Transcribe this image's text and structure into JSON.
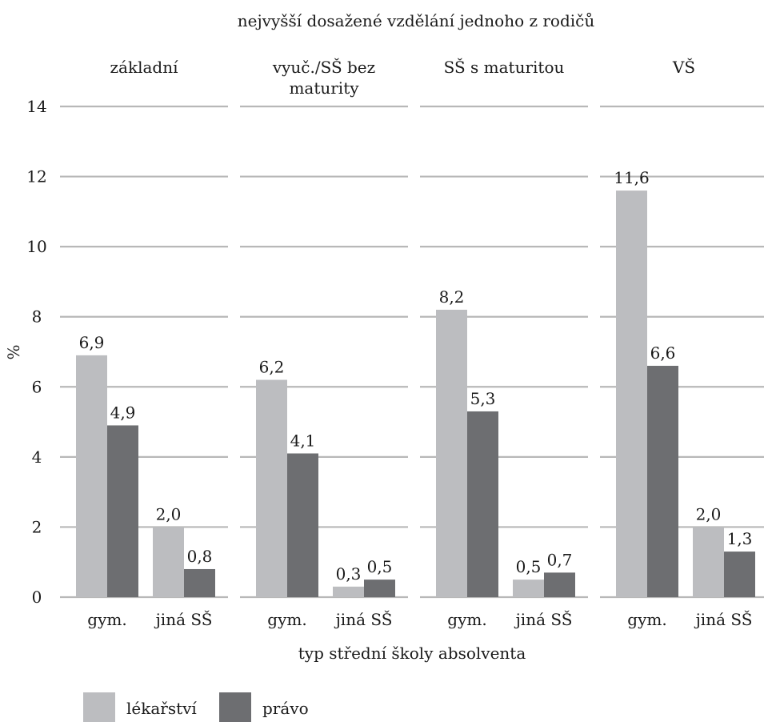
{
  "chart_data": {
    "type": "bar",
    "title": "nejvyšší dosažené vzdělání jednoho z rodičů",
    "xlabel": "typ střední školy absolventa",
    "ylabel": "%",
    "ylim": [
      0,
      14
    ],
    "yticks": [
      "0",
      "2",
      "4",
      "6",
      "8",
      "10",
      "12",
      "14"
    ],
    "grid": true,
    "legend_position": "bottom-left",
    "categories": [
      "gym.",
      "jiná SŠ"
    ],
    "panels": [
      {
        "title_lines": [
          "základní"
        ],
        "series": [
          {
            "name": "lékařství",
            "values": [
              6.9,
              2.0
            ],
            "labels": [
              "6,9",
              "2,0"
            ]
          },
          {
            "name": "právo",
            "values": [
              4.9,
              0.8
            ],
            "labels": [
              "4,9",
              "0,8"
            ]
          }
        ]
      },
      {
        "title_lines": [
          "vyuč./SŠ bez",
          "maturity"
        ],
        "series": [
          {
            "name": "lékařství",
            "values": [
              6.2,
              0.3
            ],
            "labels": [
              "6,2",
              "0,3"
            ]
          },
          {
            "name": "právo",
            "values": [
              4.1,
              0.5
            ],
            "labels": [
              "4,1",
              "0,5"
            ]
          }
        ]
      },
      {
        "title_lines": [
          "SŠ s maturitou"
        ],
        "series": [
          {
            "name": "lékařství",
            "values": [
              8.2,
              0.5
            ],
            "labels": [
              "8,2",
              "0,5"
            ]
          },
          {
            "name": "právo",
            "values": [
              5.3,
              0.7
            ],
            "labels": [
              "5,3",
              "0,7"
            ]
          }
        ]
      },
      {
        "title_lines": [
          "VŠ"
        ],
        "series": [
          {
            "name": "lékařství",
            "values": [
              11.6,
              2.0
            ],
            "labels": [
              "11,6",
              "2,0"
            ]
          },
          {
            "name": "právo",
            "values": [
              6.6,
              1.3
            ],
            "labels": [
              "6,6",
              "1,3"
            ]
          }
        ]
      }
    ],
    "legend": [
      {
        "name": "lékařství",
        "color": "#bcbdc0"
      },
      {
        "name": "právo",
        "color": "#6d6e71"
      }
    ],
    "colors": {
      "lékařství": "#bcbdc0",
      "právo": "#6d6e71",
      "grid": "#b8b8b8"
    }
  }
}
